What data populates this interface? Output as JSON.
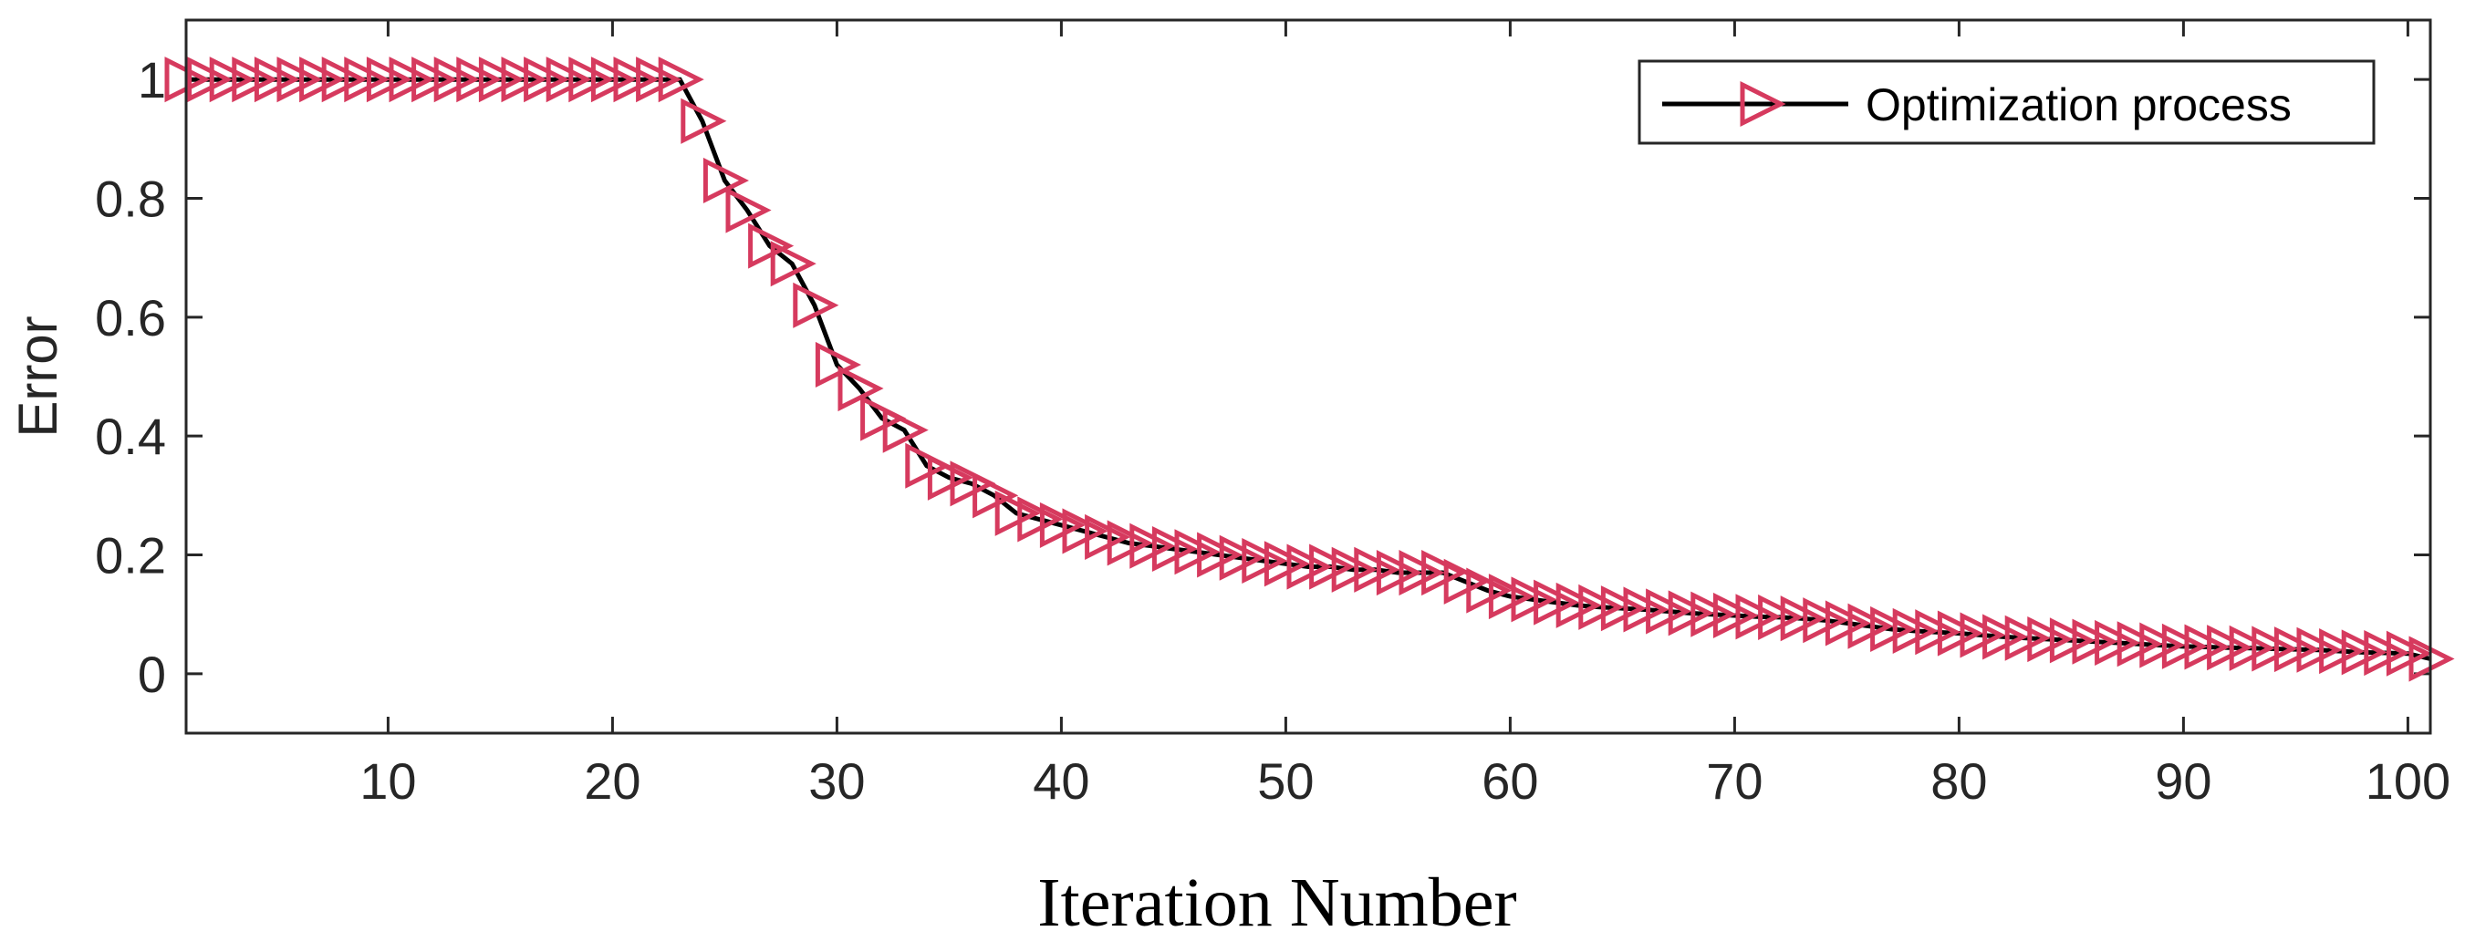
{
  "chart_data": {
    "type": "line",
    "title": "",
    "xlabel": "Iteration Number",
    "ylabel": "Error",
    "xlim": [
      1,
      101
    ],
    "ylim": [
      -0.1,
      1.1
    ],
    "xticks": [
      10,
      20,
      30,
      40,
      50,
      60,
      70,
      80,
      90,
      100
    ],
    "xtick_labels": [
      "10",
      "20",
      "30",
      "40",
      "50",
      "60",
      "70",
      "80",
      "90",
      "100"
    ],
    "yticks": [
      0,
      0.2,
      0.4,
      0.6,
      0.8,
      1
    ],
    "ytick_labels": [
      "0",
      "0.2",
      "0.4",
      "0.6",
      "0.8",
      "1"
    ],
    "grid": false,
    "legend_position": "top-right",
    "series": [
      {
        "name": "Optimization process",
        "line_color": "#000000",
        "marker": "triangle-right",
        "marker_color": "#d63a5e",
        "x": [
          1,
          2,
          3,
          4,
          5,
          6,
          7,
          8,
          9,
          10,
          11,
          12,
          13,
          14,
          15,
          16,
          17,
          18,
          19,
          20,
          21,
          22,
          23,
          24,
          25,
          26,
          27,
          28,
          29,
          30,
          31,
          32,
          33,
          34,
          35,
          36,
          37,
          38,
          39,
          40,
          41,
          42,
          43,
          44,
          45,
          46,
          47,
          48,
          49,
          50,
          51,
          52,
          53,
          54,
          55,
          56,
          57,
          58,
          59,
          60,
          61,
          62,
          63,
          64,
          65,
          66,
          67,
          68,
          69,
          70,
          71,
          72,
          73,
          74,
          75,
          76,
          77,
          78,
          79,
          80,
          81,
          82,
          83,
          84,
          85,
          86,
          87,
          88,
          89,
          90,
          91,
          92,
          93,
          94,
          95,
          96,
          97,
          98,
          99,
          100,
          101
        ],
        "values": [
          1,
          1,
          1,
          1,
          1,
          1,
          1,
          1,
          1,
          1,
          1,
          1,
          1,
          1,
          1,
          1,
          1,
          1,
          1,
          1,
          1,
          1,
          1,
          0.93,
          0.83,
          0.78,
          0.72,
          0.69,
          0.62,
          0.52,
          0.48,
          0.43,
          0.41,
          0.35,
          0.33,
          0.32,
          0.3,
          0.27,
          0.26,
          0.25,
          0.24,
          0.23,
          0.22,
          0.215,
          0.21,
          0.205,
          0.2,
          0.195,
          0.19,
          0.185,
          0.18,
          0.18,
          0.175,
          0.175,
          0.17,
          0.17,
          0.17,
          0.155,
          0.14,
          0.13,
          0.125,
          0.12,
          0.115,
          0.112,
          0.11,
          0.108,
          0.105,
          0.102,
          0.1,
          0.098,
          0.096,
          0.095,
          0.093,
          0.09,
          0.085,
          0.08,
          0.075,
          0.072,
          0.07,
          0.068,
          0.065,
          0.062,
          0.06,
          0.058,
          0.056,
          0.054,
          0.052,
          0.05,
          0.048,
          0.046,
          0.045,
          0.044,
          0.043,
          0.042,
          0.041,
          0.04,
          0.038,
          0.036,
          0.035,
          0.034,
          0.025
        ]
      }
    ]
  }
}
